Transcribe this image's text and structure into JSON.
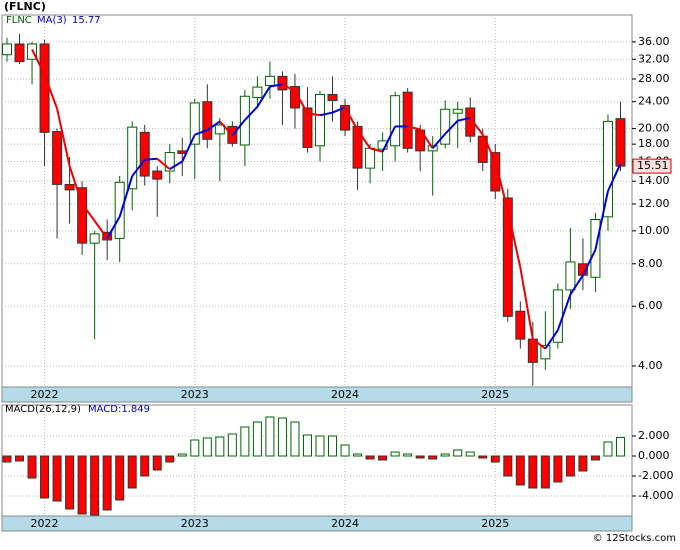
{
  "title": "(FLNC)",
  "source": "© 12Stocks.com",
  "chart_data": [
    {
      "type": "candlestick",
      "name": "FLNC",
      "up_color": "#006400",
      "down_color": "#ff0000",
      "categories": [
        null,
        null,
        null,
        "2022",
        null,
        null,
        null,
        null,
        null,
        null,
        null,
        null,
        null,
        null,
        null,
        "2023",
        null,
        null,
        null,
        null,
        null,
        null,
        null,
        null,
        null,
        null,
        null,
        "2024",
        null,
        null,
        null,
        null,
        null,
        null,
        null,
        null,
        null,
        null,
        null,
        "2025",
        null,
        null,
        null,
        null,
        null,
        null,
        null,
        null,
        null,
        null
      ],
      "open": [
        33,
        35.5,
        32,
        35.5,
        19.6,
        13.7,
        13.4,
        9.2,
        9.9,
        9.5,
        13.3,
        19.5,
        15,
        15,
        17.2,
        18,
        24,
        19.3,
        20.3,
        17.9,
        24.7,
        26.8,
        28.5,
        26.6,
        23,
        17.8,
        25.2,
        23.4,
        20.3,
        15.3,
        17.4,
        17.8,
        25.6,
        19.8,
        17.2,
        18,
        22.2,
        23,
        19,
        17,
        12.5,
        5.8,
        4.8,
        4.2,
        4.7,
        6.7,
        8,
        7.3,
        11,
        21.4
      ],
      "high": [
        37,
        38,
        36,
        36.5,
        20,
        16.5,
        14,
        10,
        10.8,
        14.5,
        21,
        20.5,
        15.5,
        18,
        18.8,
        24.5,
        27,
        21.5,
        21,
        26,
        28.5,
        31.5,
        29.5,
        29,
        26.5,
        25.8,
        28.5,
        24.5,
        21,
        18,
        19.5,
        25.7,
        26.3,
        20.5,
        19,
        24.2,
        24,
        24.7,
        20,
        18,
        13.3,
        6.2,
        5.4,
        5.8,
        7,
        10.2,
        9.5,
        11.3,
        22,
        24
      ],
      "low": [
        31.5,
        31,
        27,
        15.5,
        9.5,
        10.5,
        8.5,
        4.8,
        8.2,
        8.1,
        11.5,
        13.6,
        11,
        13.8,
        14.5,
        14.2,
        17.5,
        14,
        17.7,
        15.5,
        23,
        24.5,
        20.5,
        20,
        17,
        16,
        21,
        19,
        13.2,
        13.8,
        15,
        16,
        17,
        15,
        12.7,
        17.5,
        17.5,
        18.2,
        15,
        12.4,
        5.4,
        4.5,
        3.5,
        3.9,
        4.5,
        5.9,
        6.7,
        6.6,
        10,
        15
      ],
      "close": [
        35.5,
        31.5,
        35.5,
        19.5,
        13.7,
        13.2,
        9.2,
        9.8,
        9.4,
        13.9,
        20.2,
        14.5,
        14.2,
        17,
        16.9,
        23.8,
        18.6,
        20.5,
        18.1,
        24.9,
        26.5,
        28.5,
        26,
        23,
        17.6,
        25.2,
        24.2,
        19.8,
        15.3,
        17.5,
        18.4,
        25,
        17.5,
        17.2,
        17.8,
        22.8,
        22.8,
        19,
        15.9,
        13.1,
        5.6,
        4.8,
        4.1,
        4.6,
        6.7,
        8.1,
        7.4,
        10.8,
        21,
        15.51
      ],
      "ma": {
        "name": "MA(3)",
        "up_color": "#0000dd",
        "down_color": "#ee0000",
        "values": [
          null,
          null,
          34.2,
          28.8,
          22.9,
          15.5,
          12.0,
          10.7,
          9.5,
          11.0,
          14.5,
          16.2,
          16.3,
          15.2,
          16.0,
          19.2,
          19.8,
          21.0,
          19.1,
          21.2,
          23.2,
          26.6,
          27.0,
          25.8,
          22.2,
          21.9,
          22.3,
          23.1,
          19.8,
          17.5,
          17.1,
          20.3,
          20.3,
          19.9,
          17.5,
          19.3,
          21.1,
          21.5,
          19.2,
          16.0,
          11.5,
          7.8,
          4.8,
          4.5,
          5.1,
          6.5,
          7.4,
          8.8,
          13.1,
          15.77
        ]
      },
      "log_scale": true,
      "grid": true,
      "ylim": [
        3.47,
        43.2
      ],
      "yticks": [
        {
          "value": 4,
          "label": "4.00"
        },
        {
          "value": 6,
          "label": "6.00"
        },
        {
          "value": 8,
          "label": "8.00"
        },
        {
          "value": 10,
          "label": "10.00"
        },
        {
          "value": 12,
          "label": "12.00"
        },
        {
          "value": 14,
          "label": "14.00"
        },
        {
          "value": 16,
          "label": "16.00"
        },
        {
          "value": 18,
          "label": "18.00"
        },
        {
          "value": 20,
          "label": "20.00"
        },
        {
          "value": 24,
          "label": "24.00"
        },
        {
          "value": 28,
          "label": "28.00"
        },
        {
          "value": 32,
          "label": "32.00"
        },
        {
          "value": 36,
          "label": "36.00"
        }
      ]
    },
    {
      "type": "histogram-bars",
      "name": "MACD(26,12,9)",
      "value_name": "MACD:1.849",
      "up_color": "#006400",
      "down_color": "#ff0000",
      "values": [
        -0.6,
        -0.5,
        -2.2,
        -4.2,
        -4.5,
        -5.3,
        -5.8,
        -5.9,
        -5.4,
        -4.4,
        -3.2,
        -2.0,
        -1.4,
        -0.6,
        0.2,
        1.6,
        1.8,
        1.9,
        2.2,
        2.9,
        3.4,
        3.9,
        3.8,
        3.4,
        2.1,
        2.0,
        2.0,
        1.1,
        0.2,
        -0.3,
        -0.4,
        0.4,
        0.2,
        -0.2,
        -0.3,
        0.2,
        0.6,
        0.4,
        -0.2,
        -0.6,
        -2.0,
        -2.9,
        -3.2,
        -3.2,
        -2.6,
        -2.0,
        -1.5,
        -0.4,
        1.4,
        1.849
      ],
      "ylim": [
        -6.0,
        5.1
      ],
      "grid": true,
      "yticks": [
        {
          "value": -4,
          "label": "-4.000"
        },
        {
          "value": -2,
          "label": "-2.000"
        },
        {
          "value": 0,
          "label": "0.000"
        },
        {
          "value": 2,
          "label": "2.000"
        }
      ]
    }
  ]
}
